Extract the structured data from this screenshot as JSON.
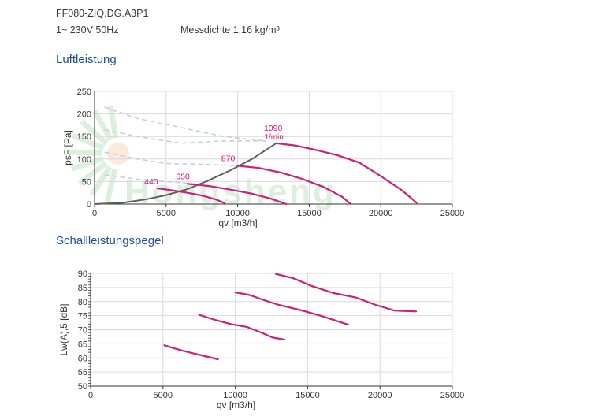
{
  "header": {
    "model": "FF080-ZIQ.DG.A3P1",
    "supply": "1~ 230V 50Hz",
    "density": "Messdichte 1,16 kg/m³"
  },
  "sections": {
    "air": "Luftleistung",
    "sound": "Schallleistungspegel"
  },
  "watermark": "Hongsheng",
  "colors": {
    "curve": "#cc1f7a",
    "curve_label": "#d4147d",
    "system_line": "#5f5f5f",
    "dashed": "#c5cbe0",
    "grid": "#d9d9d9",
    "title": "#1f4e9c"
  },
  "chart_data": [
    {
      "type": "line",
      "xlabel": "qv [m3/h]",
      "ylabel": "psF [Pa]",
      "xlim": [
        0,
        25000
      ],
      "ylim": [
        0,
        250
      ],
      "xticks": [
        "0",
        "5000",
        "10000",
        "15000",
        "20000",
        "25000"
      ],
      "yticks": [
        "0",
        "50",
        "100",
        "150",
        "200",
        "250"
      ],
      "grid": true,
      "speed_labels": [
        "440",
        "650",
        "870",
        "1090",
        "1/min"
      ],
      "series": [
        {
          "name": "440",
          "x": [
            4400,
            5500,
            6500,
            7500,
            8500,
            9100
          ],
          "y": [
            35,
            30,
            25,
            19,
            10,
            2
          ]
        },
        {
          "name": "650",
          "x": [
            6500,
            8000,
            9500,
            11000,
            12300,
            13400
          ],
          "y": [
            45,
            40,
            32,
            23,
            12,
            0
          ]
        },
        {
          "name": "870",
          "x": [
            10000,
            11500,
            13000,
            14500,
            16000,
            17300,
            17900
          ],
          "y": [
            85,
            80,
            70,
            56,
            38,
            16,
            0
          ]
        },
        {
          "name": "1090",
          "x": [
            12700,
            14000,
            15500,
            17000,
            18500,
            20000,
            21500,
            22500
          ],
          "y": [
            135,
            130,
            120,
            108,
            92,
            62,
            30,
            3
          ]
        }
      ],
      "system_curve": {
        "x": [
          0,
          2000,
          3500,
          5000,
          6500,
          8000,
          9500,
          11000,
          12700
        ],
        "y": [
          0,
          3,
          10,
          20,
          33,
          53,
          75,
          100,
          135
        ]
      },
      "dashed_curves": [
        {
          "x": [
            700,
            3000,
            6000,
            9000,
            12000
          ],
          "y": [
            215,
            190,
            170,
            150,
            140
          ]
        },
        {
          "x": [
            700,
            3000,
            6000,
            9000,
            12000
          ],
          "y": [
            165,
            150,
            135,
            140,
            140
          ]
        },
        {
          "x": [
            700,
            3000,
            5000,
            8000,
            10000
          ],
          "y": [
            115,
            100,
            90,
            88,
            85
          ]
        },
        {
          "x": [
            700,
            3000,
            5000,
            7000
          ],
          "y": [
            65,
            55,
            50,
            45
          ]
        }
      ]
    },
    {
      "type": "line",
      "xlabel": "qv [m3/h]",
      "ylabel": "Lw(A),5 [dB]",
      "xlim": [
        0,
        25000
      ],
      "ylim": [
        50,
        90
      ],
      "xticks": [
        "0",
        "5000",
        "10000",
        "15000",
        "20000",
        "25000"
      ],
      "yticks": [
        "50",
        "55",
        "60",
        "65",
        "70",
        "75",
        "80",
        "85",
        "90"
      ],
      "grid": true,
      "series": [
        {
          "name": "440",
          "x": [
            5100,
            5700,
            6400,
            7200,
            8000,
            8800
          ],
          "y": [
            64.5,
            63.5,
            62.5,
            61.5,
            60.5,
            59.5
          ]
        },
        {
          "name": "650",
          "x": [
            7500,
            8600,
            9700,
            10800,
            11800,
            12600,
            13400
          ],
          "y": [
            75.3,
            73.5,
            72,
            71,
            69,
            67.2,
            66.5
          ]
        },
        {
          "name": "870",
          "x": [
            10000,
            11000,
            12000,
            13000,
            14500,
            16000,
            17800
          ],
          "y": [
            83.3,
            82.3,
            80.5,
            78.8,
            77,
            74.8,
            71.8
          ]
        },
        {
          "name": "1090",
          "x": [
            12800,
            14000,
            15300,
            16800,
            18300,
            19700,
            21000,
            22500
          ],
          "y": [
            89.8,
            88.3,
            85.5,
            83,
            81.5,
            78.8,
            76.8,
            76.5
          ]
        }
      ]
    }
  ]
}
